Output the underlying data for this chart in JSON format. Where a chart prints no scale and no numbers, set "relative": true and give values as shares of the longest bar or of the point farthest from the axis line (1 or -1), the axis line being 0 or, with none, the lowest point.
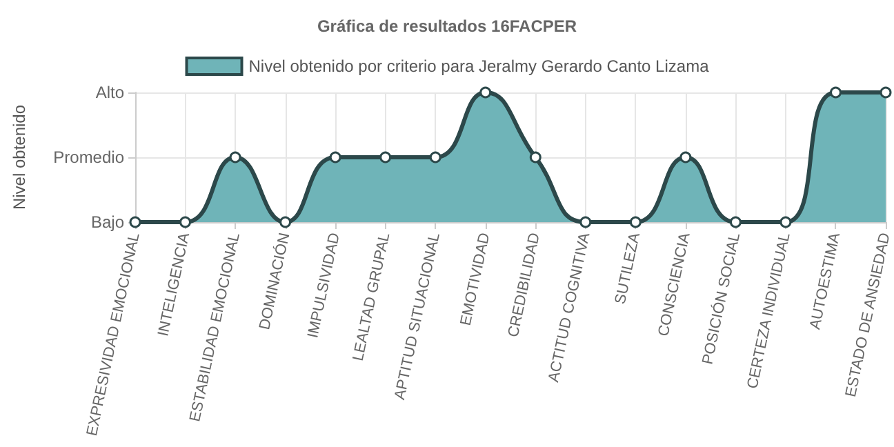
{
  "chart_data": {
    "type": "area",
    "title": "Gráfica de resultados 16FACPER",
    "ylabel": "Nivel obtenido",
    "categories": [
      "EXPRESIVIDAD EMOCIONAL",
      "INTELIGENCIA",
      "ESTABILIDAD EMOCIONAL",
      "DOMINACIÓN",
      "IMPULSIVIDAD",
      "LEALTAD GRUPAL",
      "APTITUD SITUACIONAL",
      "EMOTIVIDAD",
      "CREDIBILIDAD",
      "ACTITUD COGNITIVA",
      "SUTILEZA",
      "CONSCIENCIA",
      "POSICIÓN SOCIAL",
      "CERTEZA INDIVIDUAL",
      "AUTOESTIMA",
      "ESTADO DE ANSIEDAD"
    ],
    "series": [
      {
        "name": "Nivel obtenido por criterio para Jeralmy Gerardo Canto Lizama",
        "color": "#6fb4b8",
        "values": [
          0,
          0,
          0.5,
          0,
          0.5,
          0.5,
          0.5,
          1,
          0.5,
          0,
          0,
          0.5,
          0,
          0,
          1,
          1
        ]
      }
    ],
    "relative": true,
    "annotations": [
      "Bajo",
      "Promedio",
      "Alto"
    ],
    "grid": true,
    "legend": "top",
    "marker": "circle"
  }
}
